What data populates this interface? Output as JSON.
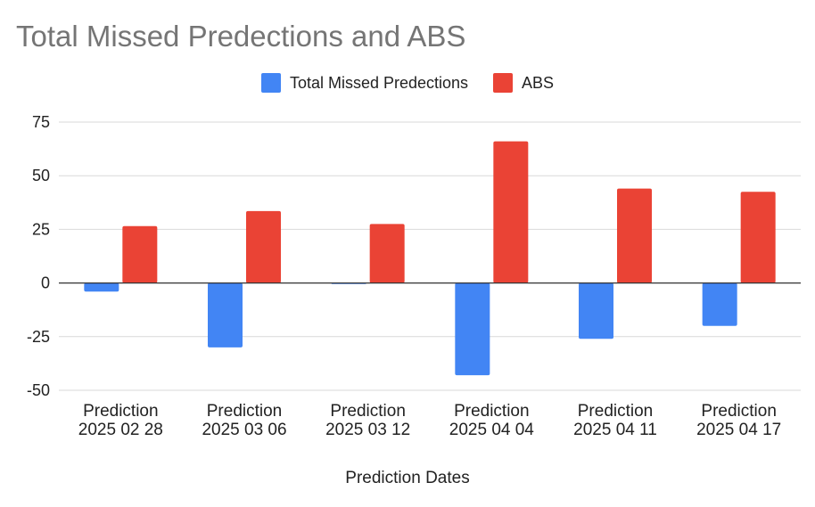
{
  "chart_data": {
    "type": "bar",
    "title": "Total Missed Predections and ABS",
    "xlabel": "Prediction Dates",
    "ylabel": "",
    "ylim": [
      -50,
      75
    ],
    "yticks": [
      75,
      50,
      25,
      0,
      -25,
      -50
    ],
    "categories": [
      [
        "Prediction",
        "2025 02 28"
      ],
      [
        "Prediction",
        "2025 03 06"
      ],
      [
        "Prediction",
        "2025 03 12"
      ],
      [
        "Prediction",
        "2025 04 04"
      ],
      [
        "Prediction",
        "2025 04 11"
      ],
      [
        "Prediction",
        "2025 04 17"
      ]
    ],
    "series": [
      {
        "name": "Total Missed Predections",
        "color": "#4285f4",
        "values": [
          -4,
          -30,
          -0.5,
          -43,
          -26,
          -20
        ]
      },
      {
        "name": "ABS",
        "color": "#ea4335",
        "values": [
          26.5,
          33.5,
          27.5,
          66,
          44,
          42.5
        ]
      }
    ],
    "grid": true,
    "legend_position": "top"
  }
}
